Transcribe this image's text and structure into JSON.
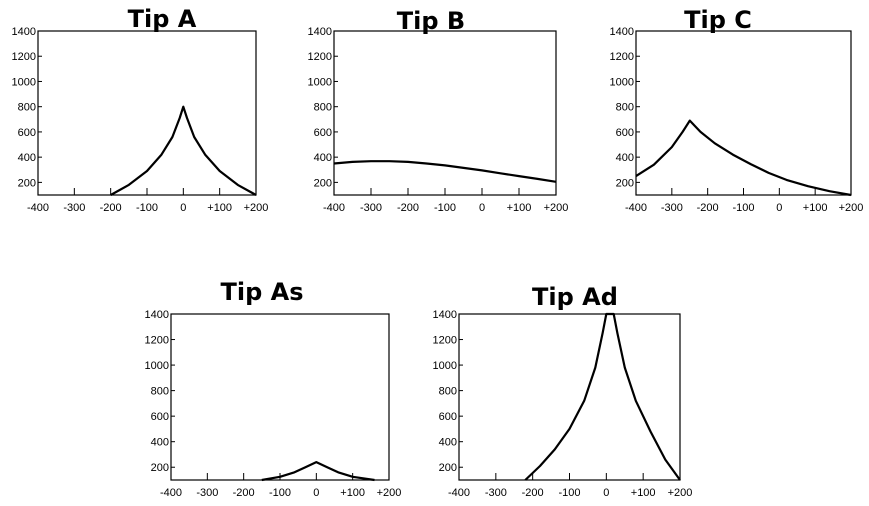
{
  "chart_data": [
    {
      "type": "line",
      "title": "Tip A",
      "xlim": [
        -400,
        200
      ],
      "ylim": [
        100,
        1400
      ],
      "xticks": [
        -400,
        -300,
        -200,
        -100,
        0,
        100,
        200
      ],
      "xtick_labels": [
        "-400",
        "-300",
        "-200",
        "-100",
        "0",
        "+100",
        "+200"
      ],
      "yticks": [
        200,
        400,
        600,
        800,
        1000,
        1200,
        1400
      ],
      "ytick_labels": [
        "200",
        "400",
        "600",
        "800",
        "1000",
        "1200",
        "1400"
      ],
      "series": [
        {
          "x": [
            -200,
            -150,
            -100,
            -60,
            -30,
            -10,
            0,
            10,
            30,
            60,
            100,
            150,
            200
          ],
          "y": [
            100,
            180,
            290,
            420,
            560,
            710,
            800,
            710,
            560,
            420,
            290,
            180,
            100
          ]
        }
      ]
    },
    {
      "type": "line",
      "title": "Tip B",
      "xlim": [
        -400,
        200
      ],
      "ylim": [
        100,
        1400
      ],
      "xticks": [
        -400,
        -300,
        -200,
        -100,
        0,
        100,
        200
      ],
      "xtick_labels": [
        "-400",
        "-300",
        "-200",
        "-100",
        "0",
        "+100",
        "+200"
      ],
      "yticks": [
        200,
        400,
        600,
        800,
        1000,
        1200,
        1400
      ],
      "ytick_labels": [
        "200",
        "400",
        "600",
        "800",
        "1000",
        "1200",
        "1400"
      ],
      "series": [
        {
          "x": [
            -400,
            -350,
            -300,
            -250,
            -200,
            -150,
            -100,
            -50,
            0,
            50,
            100,
            150,
            200
          ],
          "y": [
            350,
            362,
            368,
            368,
            362,
            350,
            335,
            315,
            295,
            272,
            250,
            228,
            205
          ]
        }
      ]
    },
    {
      "type": "line",
      "title": "Tip C",
      "xlim": [
        -400,
        200
      ],
      "ylim": [
        100,
        1400
      ],
      "xticks": [
        -400,
        -300,
        -200,
        -100,
        0,
        100,
        200
      ],
      "xtick_labels": [
        "-400",
        "-300",
        "-200",
        "-100",
        "0",
        "+100",
        "+200"
      ],
      "yticks": [
        200,
        400,
        600,
        800,
        1000,
        1200,
        1400
      ],
      "ytick_labels": [
        "200",
        "400",
        "600",
        "800",
        "1000",
        "1200",
        "1400"
      ],
      "series": [
        {
          "x": [
            -400,
            -350,
            -300,
            -270,
            -250,
            -220,
            -180,
            -130,
            -80,
            -30,
            20,
            80,
            140,
            200
          ],
          "y": [
            250,
            340,
            480,
            600,
            690,
            600,
            510,
            420,
            345,
            275,
            220,
            170,
            130,
            100
          ]
        }
      ]
    },
    {
      "type": "line",
      "title": "Tip As",
      "xlim": [
        -400,
        200
      ],
      "ylim": [
        100,
        1400
      ],
      "xticks": [
        -400,
        -300,
        -200,
        -100,
        0,
        100,
        200
      ],
      "xtick_labels": [
        "-400",
        "-300",
        "-200",
        "-100",
        "0",
        "+100",
        "+200"
      ],
      "yticks": [
        200,
        400,
        600,
        800,
        1000,
        1200,
        1400
      ],
      "ytick_labels": [
        "200",
        "400",
        "600",
        "800",
        "1000",
        "1200",
        "1400"
      ],
      "series": [
        {
          "x": [
            -150,
            -100,
            -60,
            -30,
            0,
            30,
            60,
            100,
            160
          ],
          "y": [
            100,
            125,
            160,
            200,
            240,
            200,
            160,
            125,
            100
          ]
        }
      ]
    },
    {
      "type": "line",
      "title": "Tip Ad",
      "xlim": [
        -400,
        200
      ],
      "ylim": [
        100,
        1400
      ],
      "xticks": [
        -400,
        -300,
        -200,
        -100,
        0,
        100,
        200
      ],
      "xtick_labels": [
        "-400",
        "-300",
        "-200",
        "-100",
        "0",
        "+100",
        "+200"
      ],
      "yticks": [
        200,
        400,
        600,
        800,
        1000,
        1200,
        1400
      ],
      "ytick_labels": [
        "200",
        "400",
        "600",
        "800",
        "1000",
        "1200",
        "1400"
      ],
      "series": [
        {
          "x": [
            -220,
            -180,
            -140,
            -100,
            -60,
            -30,
            -10,
            0,
            20,
            30,
            50,
            80,
            120,
            160,
            200
          ],
          "y": [
            100,
            210,
            340,
            500,
            720,
            980,
            1250,
            1400,
            1400,
            1250,
            980,
            720,
            480,
            260,
            100
          ]
        }
      ]
    }
  ]
}
